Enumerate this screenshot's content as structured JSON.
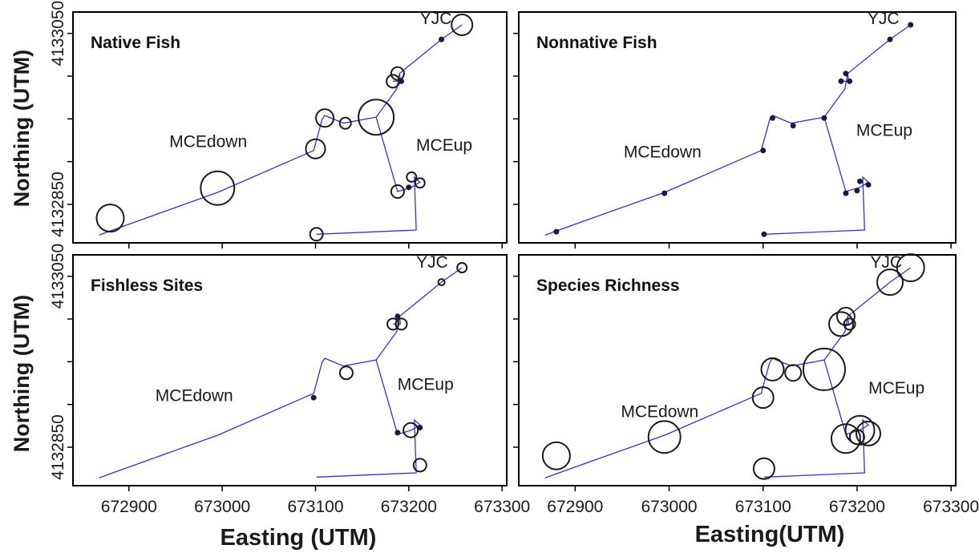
{
  "figure": {
    "colors": {
      "stream": "#3333cc",
      "circle": "#1a1a1a",
      "dot": "#1a1a40",
      "frame": "#000000"
    }
  },
  "chart_data": [
    {
      "type": "scatter",
      "title": "Native Fish",
      "ylabel": "Northing (UTM)",
      "xlabel": "",
      "xlim": [
        672840,
        673305
      ],
      "ylim": [
        4132805,
        4133075
      ],
      "x_ticks": [
        672900,
        673000,
        673100,
        673200,
        673300
      ],
      "y_ticks": [
        4132850,
        4132900,
        4132950,
        4133000,
        4133050
      ],
      "y_tick_labels": [
        "4132850",
        "",
        "",
        "",
        "4133050"
      ],
      "show_x_tick_labels": false,
      "labels": [
        {
          "text": "YJC",
          "x": 673229,
          "y": 4133061
        },
        {
          "text": "MCEdown",
          "x": 672985,
          "y": 4132917
        },
        {
          "text": "MCEup",
          "x": 673238,
          "y": 4132913
        }
      ],
      "points": [
        {
          "x": 672880,
          "y": 4132834,
          "r": 17
        },
        {
          "x": 672995,
          "y": 4132869,
          "r": 21
        },
        {
          "x": 673100,
          "y": 4132915,
          "r": 12
        },
        {
          "x": 673110,
          "y": 4132951,
          "r": 11
        },
        {
          "x": 673132,
          "y": 4132945,
          "r": 7
        },
        {
          "x": 673165,
          "y": 4132952,
          "r": 22
        },
        {
          "x": 673188,
          "y": 4132865,
          "r": 8
        },
        {
          "x": 673203,
          "y": 4132882,
          "r": 6
        },
        {
          "x": 673212,
          "y": 4132875,
          "r": 6
        },
        {
          "x": 673200,
          "y": 4132870,
          "r": 3
        },
        {
          "x": 673101,
          "y": 4132815,
          "r": 8
        },
        {
          "x": 673188,
          "y": 4133003,
          "r": 8
        },
        {
          "x": 673183,
          "y": 4132994,
          "r": 8
        },
        {
          "x": 673192,
          "y": 4132994,
          "r": 3
        },
        {
          "x": 673235,
          "y": 4133043,
          "r": 3
        },
        {
          "x": 673257,
          "y": 4133060,
          "r": 13
        }
      ]
    },
    {
      "type": "scatter",
      "title": "Nonnative Fish",
      "ylabel": "",
      "xlabel": "",
      "xlim": [
        672840,
        673305
      ],
      "ylim": [
        4132805,
        4133075
      ],
      "x_ticks": [
        672900,
        673000,
        673100,
        673200,
        673300
      ],
      "y_ticks": [
        4132850,
        4132900,
        4132950,
        4133000,
        4133050
      ],
      "y_tick_labels": [
        "",
        "",
        "",
        "",
        ""
      ],
      "show_x_tick_labels": false,
      "labels": [
        {
          "text": "YJC",
          "x": 673228,
          "y": 4133061
        },
        {
          "text": "MCEdown",
          "x": 672993,
          "y": 4132905
        },
        {
          "text": "MCEup",
          "x": 673229,
          "y": 4132930
        }
      ],
      "points": [
        {
          "x": 672880,
          "y": 4132818,
          "r": 3
        },
        {
          "x": 672995,
          "y": 4132863,
          "r": 3
        },
        {
          "x": 673100,
          "y": 4132913,
          "r": 3
        },
        {
          "x": 673110,
          "y": 4132951,
          "r": 3
        },
        {
          "x": 673132,
          "y": 4132942,
          "r": 3
        },
        {
          "x": 673165,
          "y": 4132951,
          "r": 3
        },
        {
          "x": 673188,
          "y": 4132863,
          "r": 3
        },
        {
          "x": 673203,
          "y": 4132877,
          "r": 3
        },
        {
          "x": 673212,
          "y": 4132873,
          "r": 3
        },
        {
          "x": 673200,
          "y": 4132866,
          "r": 3
        },
        {
          "x": 673101,
          "y": 4132815,
          "r": 3
        },
        {
          "x": 673188,
          "y": 4133003,
          "r": 3
        },
        {
          "x": 673183,
          "y": 4132994,
          "r": 3
        },
        {
          "x": 673192,
          "y": 4132994,
          "r": 3
        },
        {
          "x": 673235,
          "y": 4133043,
          "r": 3
        },
        {
          "x": 673257,
          "y": 4133060,
          "r": 3
        }
      ]
    },
    {
      "type": "scatter",
      "title": "Fishless Sites",
      "ylabel": "Northing (UTM)",
      "xlabel": "",
      "xlim": [
        672840,
        673305
      ],
      "ylim": [
        4132805,
        4133075
      ],
      "x_ticks": [
        672900,
        673000,
        673100,
        673200,
        673300
      ],
      "y_ticks": [
        4132850,
        4132900,
        4132950,
        4133000,
        4133050
      ],
      "y_tick_labels": [
        "4132850",
        "",
        "",
        "",
        "4133050"
      ],
      "show_x_tick_labels": true,
      "x_tick_labels": [
        "672900",
        "673000",
        "673100",
        "673200",
        "673300"
      ],
      "labels": [
        {
          "text": "YJC",
          "x": 673225,
          "y": 4133060
        },
        {
          "text": "MCEdown",
          "x": 672970,
          "y": 4132904
        },
        {
          "text": "MCEup",
          "x": 673218,
          "y": 4132917
        }
      ],
      "points": [
        {
          "x": 672868,
          "y": 4132814,
          "r": 0
        },
        {
          "x": 673098,
          "y": 4132908,
          "r": 3
        },
        {
          "x": 673133,
          "y": 4132937,
          "r": 8
        },
        {
          "x": 673188,
          "y": 4132867,
          "r": 3
        },
        {
          "x": 673202,
          "y": 4132870,
          "r": 9
        },
        {
          "x": 673212,
          "y": 4132873,
          "r": 3
        },
        {
          "x": 673212,
          "y": 4132829,
          "r": 8
        },
        {
          "x": 673188,
          "y": 4133003,
          "r": 3
        },
        {
          "x": 673183,
          "y": 4132994,
          "r": 7
        },
        {
          "x": 673192,
          "y": 4132994,
          "r": 7
        },
        {
          "x": 673235,
          "y": 4133043,
          "r": 4
        },
        {
          "x": 673257,
          "y": 4133060,
          "r": 6
        }
      ]
    },
    {
      "type": "scatter",
      "title": "Species Richness",
      "ylabel": "",
      "xlabel": "",
      "xlim": [
        672840,
        673305
      ],
      "ylim": [
        4132805,
        4133075
      ],
      "x_ticks": [
        672900,
        673000,
        673100,
        673200,
        673300
      ],
      "y_ticks": [
        4132850,
        4132900,
        4132950,
        4133000,
        4133050
      ],
      "y_tick_labels": [
        "",
        "",
        "",
        "",
        ""
      ],
      "show_x_tick_labels": true,
      "x_tick_labels": [
        "672900",
        "673000",
        "673100",
        "673200",
        "673300"
      ],
      "labels": [
        {
          "text": "YJC",
          "x": 673231,
          "y": 4133060
        },
        {
          "text": "MCEdown",
          "x": 672990,
          "y": 4132885
        },
        {
          "text": "MCEup",
          "x": 673242,
          "y": 4132913
        }
      ],
      "points": [
        {
          "x": 672880,
          "y": 4132840,
          "r": 17
        },
        {
          "x": 672995,
          "y": 4132862,
          "r": 20
        },
        {
          "x": 673100,
          "y": 4132908,
          "r": 13
        },
        {
          "x": 673110,
          "y": 4132941,
          "r": 14
        },
        {
          "x": 673132,
          "y": 4132937,
          "r": 10
        },
        {
          "x": 673165,
          "y": 4132941,
          "r": 26
        },
        {
          "x": 673188,
          "y": 4132860,
          "r": 18
        },
        {
          "x": 673203,
          "y": 4132870,
          "r": 18
        },
        {
          "x": 673212,
          "y": 4132866,
          "r": 15
        },
        {
          "x": 673200,
          "y": 4132862,
          "r": 9
        },
        {
          "x": 673101,
          "y": 4132825,
          "r": 13
        },
        {
          "x": 673188,
          "y": 4133003,
          "r": 11
        },
        {
          "x": 673183,
          "y": 4132994,
          "r": 15
        },
        {
          "x": 673192,
          "y": 4132994,
          "r": 7
        },
        {
          "x": 673235,
          "y": 4133043,
          "r": 16
        },
        {
          "x": 673257,
          "y": 4133060,
          "r": 17
        }
      ]
    }
  ],
  "stream_network": {
    "main": [
      [
        672868,
        4132814
      ],
      [
        672880,
        4132819
      ],
      [
        672995,
        4132864
      ],
      [
        673098,
        4132913
      ],
      [
        673107,
        4132949
      ],
      [
        673110,
        4132954
      ],
      [
        673130,
        4132945
      ],
      [
        673165,
        4132952
      ],
      [
        673187,
        4132985
      ],
      [
        673190,
        4133003
      ],
      [
        673235,
        4133043
      ],
      [
        673257,
        4133060
      ]
    ],
    "branches": [
      [
        [
          673165,
          4132952
        ],
        [
          673188,
          4132865
        ],
        [
          673203,
          4132870
        ],
        [
          673212,
          4132876
        ],
        [
          673206,
          4132882
        ],
        [
          673208,
          4132820
        ],
        [
          673101,
          4132815
        ]
      ],
      [
        [
          673190,
          4133003
        ],
        [
          673191,
          4132994
        ],
        [
          673183,
          4132994
        ]
      ]
    ]
  },
  "axis_titles": {
    "y_top": "Northing (UTM)",
    "y_bottom": "Northing (UTM)",
    "x_left": "Easting (UTM)",
    "x_right": "Easting(UTM)"
  }
}
